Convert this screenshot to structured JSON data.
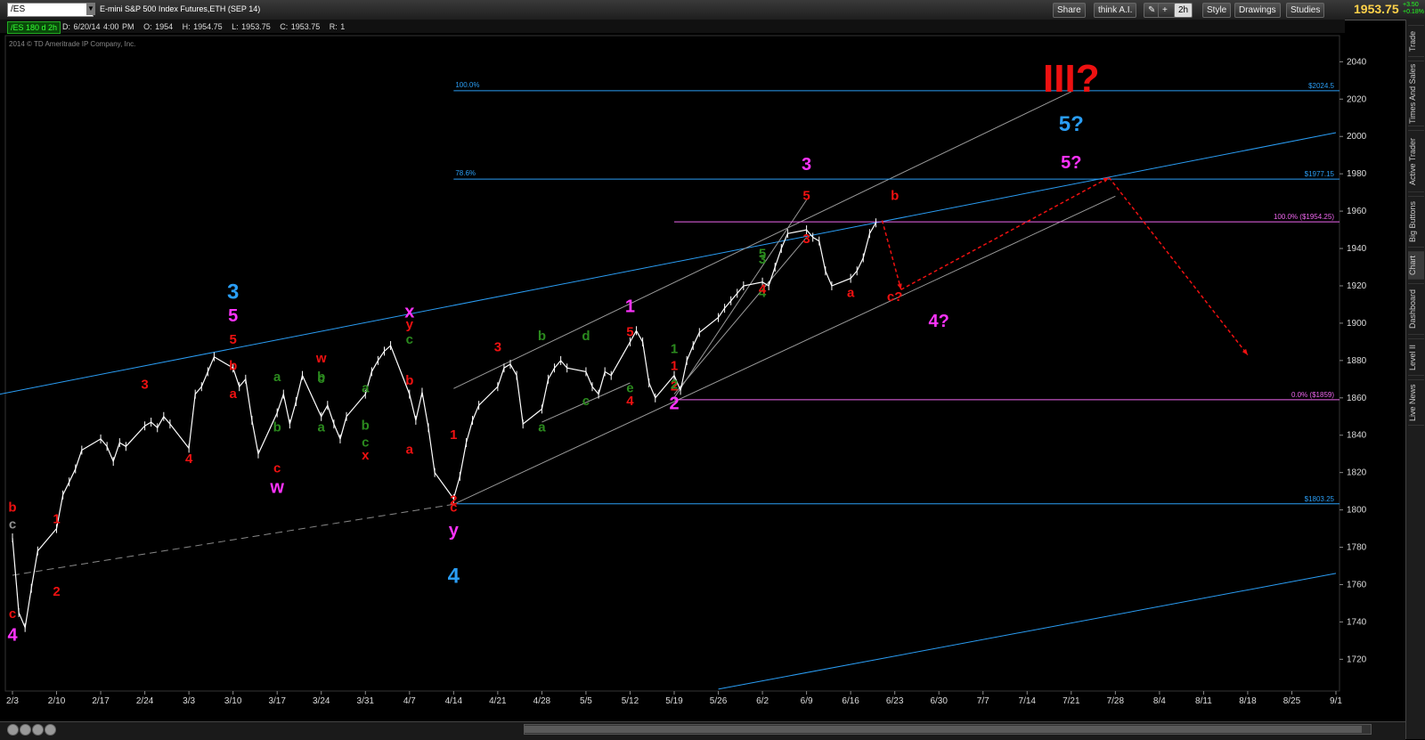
{
  "toolbar": {
    "symbol": "/ES",
    "description": "E-mini S&P 500 Index Futures,ETH (SEP 14)",
    "share_label": "Share",
    "think_label": "think A.I.",
    "period_label": "2h",
    "style_label": "Style",
    "drawings_label": "Drawings",
    "studies_label": "Studies",
    "last_price": "1953.75",
    "change": "+3.50",
    "change_pct": "+0.18%"
  },
  "infobar": {
    "tag": "/ES 180 d 2h",
    "date": "D: 6/20/14 4:00 PM",
    "open": "O: 1954",
    "high": "H: 1954.75",
    "low": "L: 1953.75",
    "close": "C: 1953.75",
    "range": "R: 1"
  },
  "copyright": "2014 © TD Ameritrade IP Company, Inc.",
  "sidebar_tabs": [
    "Trade",
    "Times And Sales",
    "Active Trader",
    "Big Buttons",
    "Chart",
    "Dashboard",
    "Level II",
    "Live News"
  ],
  "colors": {
    "red": "#ee1111",
    "magenta": "#ff33ff",
    "blue": "#2a9df4",
    "green": "#2b8a1e",
    "price": "#ffffff",
    "fib": "#2a9df4",
    "pink": "#ee66ee",
    "gray": "#909090"
  },
  "chart_data": {
    "type": "line",
    "title": "",
    "xlabel": "",
    "ylabel": "",
    "x_axis": {
      "ticks": [
        "2/3",
        "2/10",
        "2/17",
        "2/24",
        "3/3",
        "3/10",
        "3/17",
        "3/24",
        "3/31",
        "4/7",
        "4/14",
        "4/21",
        "4/28",
        "5/5",
        "5/12",
        "5/19",
        "5/26",
        "6/2",
        "6/9",
        "6/16",
        "6/23",
        "6/30",
        "7/7",
        "7/14",
        "7/21",
        "7/28",
        "8/4",
        "8/11",
        "8/18",
        "8/25",
        "9/1"
      ]
    },
    "y_axis": {
      "ticks": [
        1720,
        1740,
        1760,
        1780,
        1800,
        1820,
        1840,
        1860,
        1880,
        1900,
        1920,
        1940,
        1960,
        1980,
        2000,
        2020,
        2040
      ],
      "ylim": [
        1703,
        2054
      ]
    },
    "price_series": {
      "name": "",
      "points": [
        [
          "2/3",
          1785
        ],
        [
          "2/4",
          1745
        ],
        [
          "2/5",
          1737
        ],
        [
          "2/6",
          1758
        ],
        [
          "2/7",
          1778
        ],
        [
          "2/10",
          1790
        ],
        [
          "2/11",
          1808
        ],
        [
          "2/12",
          1815
        ],
        [
          "2/13",
          1822
        ],
        [
          "2/14",
          1832
        ],
        [
          "2/17",
          1838
        ],
        [
          "2/18",
          1834
        ],
        [
          "2/19",
          1826
        ],
        [
          "2/20",
          1836
        ],
        [
          "2/21",
          1834
        ],
        [
          "2/24",
          1845
        ],
        [
          "2/25",
          1847
        ],
        [
          "2/26",
          1844
        ],
        [
          "2/27",
          1850
        ],
        [
          "2/28",
          1846
        ],
        [
          "3/3",
          1833
        ],
        [
          "3/4",
          1862
        ],
        [
          "3/5",
          1866
        ],
        [
          "3/6",
          1874
        ],
        [
          "3/7",
          1882
        ],
        [
          "3/10",
          1876
        ],
        [
          "3/11",
          1866
        ],
        [
          "3/12",
          1870
        ],
        [
          "3/13",
          1848
        ],
        [
          "3/14",
          1830
        ],
        [
          "3/17",
          1852
        ],
        [
          "3/18",
          1862
        ],
        [
          "3/19",
          1846
        ],
        [
          "3/20",
          1858
        ],
        [
          "3/21",
          1872
        ],
        [
          "3/24",
          1850
        ],
        [
          "3/25",
          1856
        ],
        [
          "3/26",
          1846
        ],
        [
          "3/27",
          1838
        ],
        [
          "3/28",
          1850
        ],
        [
          "3/31",
          1862
        ],
        [
          "4/1",
          1874
        ],
        [
          "4/2",
          1880
        ],
        [
          "4/3",
          1885
        ],
        [
          "4/4",
          1888
        ],
        [
          "4/7",
          1862
        ],
        [
          "4/8",
          1848
        ],
        [
          "4/9",
          1863
        ],
        [
          "4/10",
          1844
        ],
        [
          "4/11",
          1820
        ],
        [
          "4/14",
          1806
        ],
        [
          "4/15",
          1818
        ],
        [
          "4/16",
          1836
        ],
        [
          "4/17",
          1848
        ],
        [
          "4/18",
          1856
        ],
        [
          "4/21",
          1866
        ],
        [
          "4/22",
          1876
        ],
        [
          "4/23",
          1878
        ],
        [
          "4/24",
          1872
        ],
        [
          "4/25",
          1846
        ],
        [
          "4/28",
          1854
        ],
        [
          "4/29",
          1870
        ],
        [
          "4/30",
          1876
        ],
        [
          "5/1",
          1880
        ],
        [
          "5/2",
          1876
        ],
        [
          "5/5",
          1874
        ],
        [
          "5/6",
          1866
        ],
        [
          "5/7",
          1862
        ],
        [
          "5/8",
          1874
        ],
        [
          "5/9",
          1872
        ],
        [
          "5/12",
          1890
        ],
        [
          "5/13",
          1896
        ],
        [
          "5/14",
          1890
        ],
        [
          "5/15",
          1868
        ],
        [
          "5/16",
          1860
        ],
        [
          "5/19",
          1872
        ],
        [
          "5/20",
          1864
        ],
        [
          "5/21",
          1880
        ],
        [
          "5/22",
          1888
        ],
        [
          "5/23",
          1895
        ],
        [
          "5/26",
          1903
        ],
        [
          "5/27",
          1908
        ],
        [
          "5/28",
          1912
        ],
        [
          "5/29",
          1916
        ],
        [
          "5/30",
          1920
        ],
        [
          "6/2",
          1922
        ],
        [
          "6/3",
          1920
        ],
        [
          "6/4",
          1930
        ],
        [
          "6/5",
          1940
        ],
        [
          "6/6",
          1948
        ],
        [
          "6/9",
          1950
        ],
        [
          "6/10",
          1946
        ],
        [
          "6/11",
          1944
        ],
        [
          "6/12",
          1928
        ],
        [
          "6/13",
          1920
        ],
        [
          "6/16",
          1924
        ],
        [
          "6/17",
          1928
        ],
        [
          "6/18",
          1935
        ],
        [
          "6/19",
          1948
        ],
        [
          "6/20",
          1953.75
        ]
      ]
    },
    "fibonacci": [
      {
        "label": "100.0%",
        "price_label": "$2024.5",
        "value": 2024.5
      },
      {
        "label": "78.6%",
        "price_label": "$1977.15",
        "value": 1977.15
      },
      {
        "label": "100.0%  ($1954.25)",
        "value": 1954.25
      },
      {
        "label": "0.0%  ($1859)",
        "value": 1859
      },
      {
        "label": "$1803.25",
        "value": 1803.25
      }
    ],
    "wave_labels": [
      {
        "text": "4",
        "color": "magenta",
        "x": "2/3",
        "y": 1730
      },
      {
        "text": "c",
        "color": "red",
        "x": "2/3",
        "y": 1742
      },
      {
        "text": "b",
        "color": "red",
        "x": "2/3",
        "y": 1799
      },
      {
        "text": "c",
        "color": "gray",
        "x": "2/3",
        "y": 1790
      },
      {
        "text": "1",
        "color": "red",
        "x": "2/10",
        "y": 1793
      },
      {
        "text": "2",
        "color": "red",
        "x": "2/10",
        "y": 1754
      },
      {
        "text": "3",
        "color": "red",
        "x": "2/24",
        "y": 1865
      },
      {
        "text": "4",
        "color": "red",
        "x": "3/3",
        "y": 1825
      },
      {
        "text": "3",
        "color": "blue",
        "x": "3/10",
        "y": 1913
      },
      {
        "text": "5",
        "color": "magenta",
        "x": "3/10",
        "y": 1901
      },
      {
        "text": "5",
        "color": "red",
        "x": "3/10",
        "y": 1889
      },
      {
        "text": "b",
        "color": "red",
        "x": "3/10",
        "y": 1875
      },
      {
        "text": "a",
        "color": "red",
        "x": "3/10",
        "y": 1860
      },
      {
        "text": "c",
        "color": "red",
        "x": "3/17",
        "y": 1820
      },
      {
        "text": "w",
        "color": "magenta",
        "x": "3/17",
        "y": 1809
      },
      {
        "text": "a",
        "color": "green",
        "x": "3/17",
        "y": 1869
      },
      {
        "text": "b",
        "color": "green",
        "x": "3/17",
        "y": 1842
      },
      {
        "text": "w",
        "color": "red",
        "x": "3/24",
        "y": 1879
      },
      {
        "text": "c",
        "color": "green",
        "x": "3/24",
        "y": 1868
      },
      {
        "text": "a",
        "color": "green",
        "x": "3/24",
        "y": 1842
      },
      {
        "text": "b",
        "color": "green",
        "x": "3/24",
        "y": 1869
      },
      {
        "text": "a",
        "color": "green",
        "x": "3/31",
        "y": 1863
      },
      {
        "text": "b",
        "color": "green",
        "x": "3/31",
        "y": 1843
      },
      {
        "text": "c",
        "color": "green",
        "x": "3/31",
        "y": 1834
      },
      {
        "text": "x",
        "color": "red",
        "x": "3/31",
        "y": 1827
      },
      {
        "text": "x",
        "color": "magenta",
        "x": "4/7",
        "y": 1903
      },
      {
        "text": "y",
        "color": "red",
        "x": "4/7",
        "y": 1897
      },
      {
        "text": "c",
        "color": "green",
        "x": "4/7",
        "y": 1889
      },
      {
        "text": "b",
        "color": "red",
        "x": "4/7",
        "y": 1867
      },
      {
        "text": "a",
        "color": "red",
        "x": "4/7",
        "y": 1830
      },
      {
        "text": "1",
        "color": "red",
        "x": "4/14",
        "y": 1838
      },
      {
        "text": "2",
        "color": "red",
        "x": "4/14",
        "y": 1803
      },
      {
        "text": "c",
        "color": "red",
        "x": "4/14",
        "y": 1799
      },
      {
        "text": "y",
        "color": "magenta",
        "x": "4/14",
        "y": 1786
      },
      {
        "text": "4",
        "color": "blue",
        "x": "4/14",
        "y": 1761
      },
      {
        "text": "3",
        "color": "red",
        "x": "4/21",
        "y": 1885
      },
      {
        "text": "a",
        "color": "green",
        "x": "4/28",
        "y": 1842
      },
      {
        "text": "b",
        "color": "green",
        "x": "4/28",
        "y": 1891
      },
      {
        "text": "c",
        "color": "green",
        "x": "5/5",
        "y": 1856
      },
      {
        "text": "d",
        "color": "green",
        "x": "5/5",
        "y": 1891
      },
      {
        "text": "e",
        "color": "green",
        "x": "5/12",
        "y": 1863
      },
      {
        "text": "4",
        "color": "red",
        "x": "5/12",
        "y": 1856
      },
      {
        "text": "1",
        "color": "magenta",
        "x": "5/12",
        "y": 1906
      },
      {
        "text": "5",
        "color": "red",
        "x": "5/12",
        "y": 1893
      },
      {
        "text": "1",
        "color": "red",
        "x": "5/19",
        "y": 1875
      },
      {
        "text": "2",
        "color": "red",
        "x": "5/19",
        "y": 1864
      },
      {
        "text": "2",
        "color": "magenta",
        "x": "5/19",
        "y": 1854
      },
      {
        "text": "1",
        "color": "green",
        "x": "5/19",
        "y": 1884
      },
      {
        "text": "2",
        "color": "green",
        "x": "5/19",
        "y": 1865
      },
      {
        "text": "3",
        "color": "green",
        "x": "6/2",
        "y": 1932
      },
      {
        "text": "4",
        "color": "green",
        "x": "6/2",
        "y": 1914
      },
      {
        "text": "5",
        "color": "green",
        "x": "6/2",
        "y": 1935
      },
      {
        "text": "4",
        "color": "red",
        "x": "6/2",
        "y": 1916
      },
      {
        "text": "3",
        "color": "red",
        "x": "6/9",
        "y": 1943
      },
      {
        "text": "3",
        "color": "magenta",
        "x": "6/9",
        "y": 1982
      },
      {
        "text": "5",
        "color": "red",
        "x": "6/9",
        "y": 1966
      },
      {
        "text": "a",
        "color": "red",
        "x": "6/16",
        "y": 1914
      },
      {
        "text": "b",
        "color": "red",
        "x": "6/23",
        "y": 1966
      },
      {
        "text": "c?",
        "color": "red",
        "x": "6/23",
        "y": 1912
      },
      {
        "text": "4?",
        "color": "magenta",
        "x": "6/30",
        "y": 1898
      },
      {
        "text": "III?",
        "color": "red",
        "x": "7/21",
        "y": 2024
      },
      {
        "text": "5?",
        "color": "blue",
        "x": "7/21",
        "y": 2003
      },
      {
        "text": "5?",
        "color": "magenta",
        "x": "7/21",
        "y": 1983
      }
    ]
  }
}
